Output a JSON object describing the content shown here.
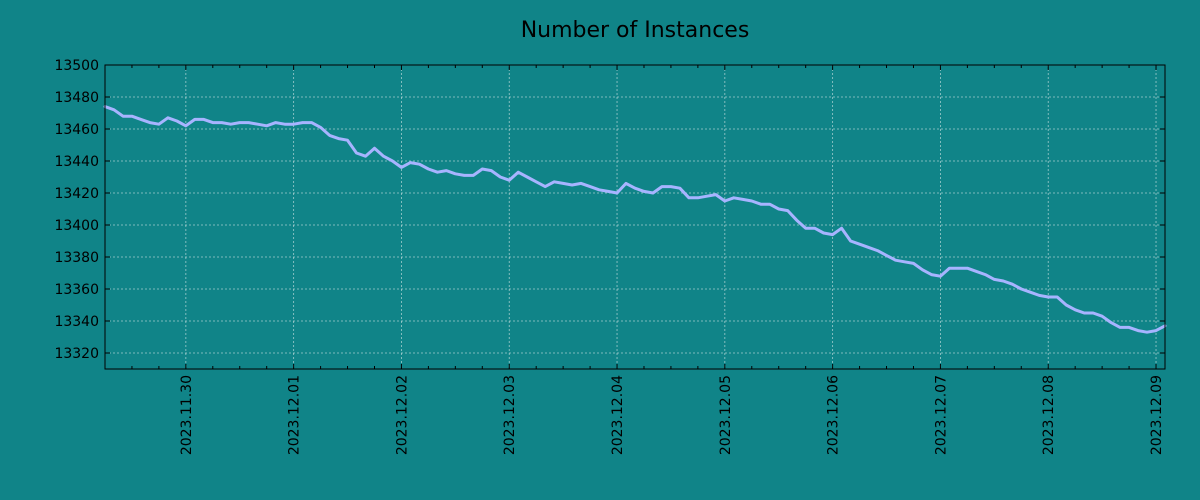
{
  "chart_data": {
    "type": "line",
    "title": "Number of Instances",
    "xlabel": "",
    "ylabel": "",
    "grid": true,
    "xlim": [
      "2023-11-29 06:00",
      "2023-12-09 02:00"
    ],
    "ylim": [
      13310,
      13500
    ],
    "y_ticks": [
      13320,
      13340,
      13360,
      13380,
      13400,
      13420,
      13440,
      13460,
      13480,
      13500
    ],
    "x_tick_labels": [
      "2023.11.30",
      "2023.12.01",
      "2023.12.02",
      "2023.12.03",
      "2023.12.04",
      "2023.12.05",
      "2023.12.06",
      "2023.12.07",
      "2023.12.08",
      "2023.12.09"
    ],
    "series": [
      {
        "color": "#a7b4ff",
        "points": [
          [
            "2023-11-29 06:00",
            13474
          ],
          [
            "2023-11-29 08:00",
            13472
          ],
          [
            "2023-11-29 10:00",
            13468
          ],
          [
            "2023-11-29 12:00",
            13468
          ],
          [
            "2023-11-29 14:00",
            13466
          ],
          [
            "2023-11-29 16:00",
            13464
          ],
          [
            "2023-11-29 18:00",
            13463
          ],
          [
            "2023-11-29 20:00",
            13467
          ],
          [
            "2023-11-29 22:00",
            13465
          ],
          [
            "2023-11-30 00:00",
            13462
          ],
          [
            "2023-11-30 02:00",
            13466
          ],
          [
            "2023-11-30 04:00",
            13466
          ],
          [
            "2023-11-30 06:00",
            13464
          ],
          [
            "2023-11-30 08:00",
            13464
          ],
          [
            "2023-11-30 10:00",
            13463
          ],
          [
            "2023-11-30 12:00",
            13464
          ],
          [
            "2023-11-30 14:00",
            13464
          ],
          [
            "2023-11-30 16:00",
            13463
          ],
          [
            "2023-11-30 18:00",
            13462
          ],
          [
            "2023-11-30 20:00",
            13464
          ],
          [
            "2023-11-30 22:00",
            13463
          ],
          [
            "2023-12-01 00:00",
            13463
          ],
          [
            "2023-12-01 02:00",
            13464
          ],
          [
            "2023-12-01 04:00",
            13464
          ],
          [
            "2023-12-01 06:00",
            13461
          ],
          [
            "2023-12-01 08:00",
            13456
          ],
          [
            "2023-12-01 10:00",
            13454
          ],
          [
            "2023-12-01 12:00",
            13453
          ],
          [
            "2023-12-01 14:00",
            13445
          ],
          [
            "2023-12-01 16:00",
            13443
          ],
          [
            "2023-12-01 18:00",
            13448
          ],
          [
            "2023-12-01 20:00",
            13443
          ],
          [
            "2023-12-01 22:00",
            13440
          ],
          [
            "2023-12-02 00:00",
            13436
          ],
          [
            "2023-12-02 02:00",
            13439
          ],
          [
            "2023-12-02 04:00",
            13438
          ],
          [
            "2023-12-02 06:00",
            13435
          ],
          [
            "2023-12-02 08:00",
            13433
          ],
          [
            "2023-12-02 10:00",
            13434
          ],
          [
            "2023-12-02 12:00",
            13432
          ],
          [
            "2023-12-02 14:00",
            13431
          ],
          [
            "2023-12-02 16:00",
            13431
          ],
          [
            "2023-12-02 18:00",
            13435
          ],
          [
            "2023-12-02 20:00",
            13434
          ],
          [
            "2023-12-02 22:00",
            13430
          ],
          [
            "2023-12-03 00:00",
            13428
          ],
          [
            "2023-12-03 02:00",
            13433
          ],
          [
            "2023-12-03 04:00",
            13430
          ],
          [
            "2023-12-03 06:00",
            13427
          ],
          [
            "2023-12-03 08:00",
            13424
          ],
          [
            "2023-12-03 10:00",
            13427
          ],
          [
            "2023-12-03 12:00",
            13426
          ],
          [
            "2023-12-03 14:00",
            13425
          ],
          [
            "2023-12-03 16:00",
            13426
          ],
          [
            "2023-12-03 18:00",
            13424
          ],
          [
            "2023-12-03 20:00",
            13422
          ],
          [
            "2023-12-03 22:00",
            13421
          ],
          [
            "2023-12-04 00:00",
            13420
          ],
          [
            "2023-12-04 02:00",
            13426
          ],
          [
            "2023-12-04 04:00",
            13423
          ],
          [
            "2023-12-04 06:00",
            13421
          ],
          [
            "2023-12-04 08:00",
            13420
          ],
          [
            "2023-12-04 10:00",
            13424
          ],
          [
            "2023-12-04 12:00",
            13424
          ],
          [
            "2023-12-04 14:00",
            13423
          ],
          [
            "2023-12-04 16:00",
            13417
          ],
          [
            "2023-12-04 18:00",
            13417
          ],
          [
            "2023-12-04 20:00",
            13418
          ],
          [
            "2023-12-04 22:00",
            13419
          ],
          [
            "2023-12-05 00:00",
            13415
          ],
          [
            "2023-12-05 02:00",
            13417
          ],
          [
            "2023-12-05 04:00",
            13416
          ],
          [
            "2023-12-05 06:00",
            13415
          ],
          [
            "2023-12-05 08:00",
            13413
          ],
          [
            "2023-12-05 10:00",
            13413
          ],
          [
            "2023-12-05 12:00",
            13410
          ],
          [
            "2023-12-05 14:00",
            13409
          ],
          [
            "2023-12-05 16:00",
            13403
          ],
          [
            "2023-12-05 18:00",
            13398
          ],
          [
            "2023-12-05 20:00",
            13398
          ],
          [
            "2023-12-05 22:00",
            13395
          ],
          [
            "2023-12-06 00:00",
            13394
          ],
          [
            "2023-12-06 02:00",
            13398
          ],
          [
            "2023-12-06 04:00",
            13390
          ],
          [
            "2023-12-06 06:00",
            13388
          ],
          [
            "2023-12-06 08:00",
            13386
          ],
          [
            "2023-12-06 10:00",
            13384
          ],
          [
            "2023-12-06 12:00",
            13381
          ],
          [
            "2023-12-06 14:00",
            13378
          ],
          [
            "2023-12-06 16:00",
            13377
          ],
          [
            "2023-12-06 18:00",
            13376
          ],
          [
            "2023-12-06 20:00",
            13372
          ],
          [
            "2023-12-06 22:00",
            13369
          ],
          [
            "2023-12-07 00:00",
            13368
          ],
          [
            "2023-12-07 02:00",
            13373
          ],
          [
            "2023-12-07 04:00",
            13373
          ],
          [
            "2023-12-07 06:00",
            13373
          ],
          [
            "2023-12-07 08:00",
            13371
          ],
          [
            "2023-12-07 10:00",
            13369
          ],
          [
            "2023-12-07 12:00",
            13366
          ],
          [
            "2023-12-07 14:00",
            13365
          ],
          [
            "2023-12-07 16:00",
            13363
          ],
          [
            "2023-12-07 18:00",
            13360
          ],
          [
            "2023-12-07 20:00",
            13358
          ],
          [
            "2023-12-07 22:00",
            13356
          ],
          [
            "2023-12-08 00:00",
            13355
          ],
          [
            "2023-12-08 02:00",
            13355
          ],
          [
            "2023-12-08 04:00",
            13350
          ],
          [
            "2023-12-08 06:00",
            13347
          ],
          [
            "2023-12-08 08:00",
            13345
          ],
          [
            "2023-12-08 10:00",
            13345
          ],
          [
            "2023-12-08 12:00",
            13343
          ],
          [
            "2023-12-08 14:00",
            13339
          ],
          [
            "2023-12-08 16:00",
            13336
          ],
          [
            "2023-12-08 18:00",
            13336
          ],
          [
            "2023-12-08 20:00",
            13334
          ],
          [
            "2023-12-08 22:00",
            13333
          ],
          [
            "2023-12-09 00:00",
            13334
          ],
          [
            "2023-12-09 02:00",
            13337
          ]
        ]
      }
    ]
  }
}
